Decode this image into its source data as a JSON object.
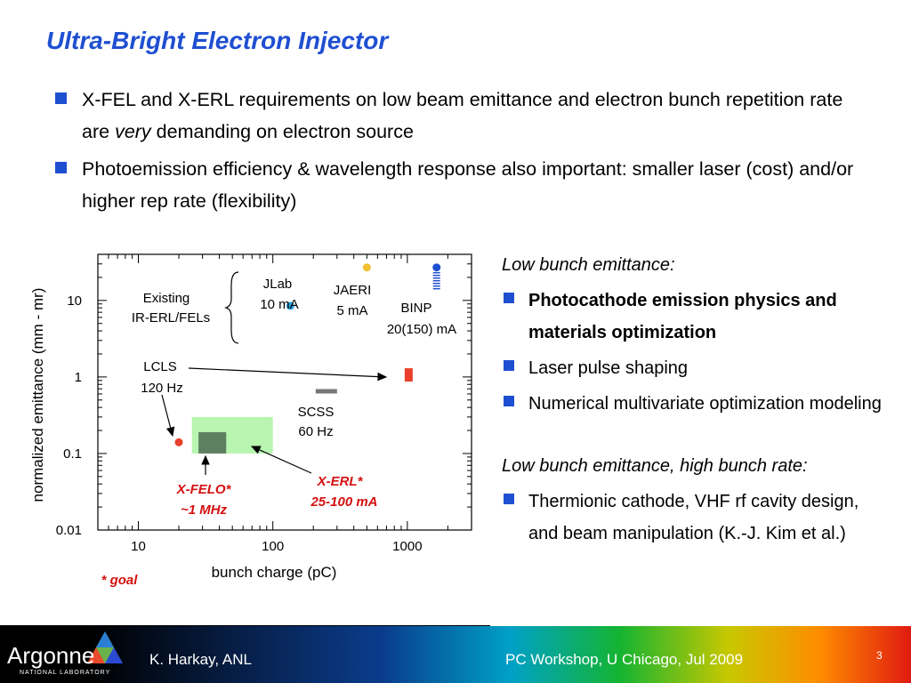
{
  "title": "Ultra-Bright Electron Injector",
  "bullets": {
    "b1_part1": "X-FEL and X-ERL requirements on low beam emittance and electron bunch repetition rate are ",
    "b1_italic": "very",
    "b1_part2": " demanding on electron source",
    "b2": "Photoemission efficiency & wavelength response also important: smaller laser (cost) and/or higher rep rate (flexibility)"
  },
  "right": {
    "heading1": "Low bunch emittance:",
    "item1": "Photocathode emission physics and materials optimization",
    "item2": "Laser pulse shaping",
    "item3": "Numerical multivariate optimization modeling",
    "heading2": "Low bunch emittance, high bunch rate:",
    "item4": "Thermionic cathode, VHF rf cavity design, and beam manipulation (K.-J. Kim et al.)"
  },
  "chart_data": {
    "type": "scatter",
    "xlabel": "bunch charge (pC)",
    "ylabel": "normalized emittance (mm - mr)",
    "x_scale": "log",
    "y_scale": "log",
    "xlim": [
      5,
      3000
    ],
    "ylim": [
      0.01,
      40
    ],
    "x_ticks": [
      {
        "v": 10,
        "label": "10"
      },
      {
        "v": 100,
        "label": "100"
      },
      {
        "v": 1000,
        "label": "1000"
      }
    ],
    "y_ticks": [
      {
        "v": 0.01,
        "label": "0.01"
      },
      {
        "v": 0.1,
        "label": "0.1"
      },
      {
        "v": 1,
        "label": "1"
      },
      {
        "v": 10,
        "label": "10"
      }
    ],
    "points": [
      {
        "name": "JLab",
        "x": 135,
        "y": 8.5,
        "color": "#2aa8e8"
      },
      {
        "name": "JAERI",
        "x": 500,
        "y": 27,
        "color": "#f2c030"
      },
      {
        "name": "BINP",
        "x": 1650,
        "y": 27,
        "color": "#1f4fd1"
      },
      {
        "name": "LCLS",
        "x": 20,
        "y": 0.14,
        "color": "#e8402a"
      },
      {
        "name": "SCSS",
        "x": 250,
        "y": 0.65,
        "color": "#777777"
      }
    ],
    "regions": [
      {
        "name": "X-ERL",
        "x0": 25,
        "x1": 100,
        "y0": 0.1,
        "y1": 0.3,
        "color": "#b8f5b0"
      },
      {
        "name": "X-FELO",
        "x0": 28,
        "x1": 45,
        "y0": 0.1,
        "y1": 0.19,
        "color": "#5f8060"
      }
    ],
    "labels": {
      "existing": [
        "Existing",
        "IR-ERL/FELs"
      ],
      "jlab": [
        "JLab",
        "10 mA"
      ],
      "jaeri": [
        "JAERI",
        "5 mA"
      ],
      "binp": [
        "BINP",
        "20(150) mA"
      ],
      "lcls": [
        "LCLS",
        "120 Hz"
      ],
      "scss": [
        "SCSS",
        "60 Hz"
      ],
      "xfelo": [
        "X-FELO*",
        "~1 MHz"
      ],
      "xerl": [
        "X-ERL*",
        "25-100 mA"
      ],
      "goal": "* goal"
    },
    "label_colors": {
      "goal_text": "#d41010"
    }
  },
  "footer": {
    "logo": "Argonne",
    "logo_sub": "NATIONAL LABORATORY",
    "author": "K. Harkay, ANL",
    "workshop": "PC Workshop, U Chicago,  Jul 2009",
    "page": "3"
  }
}
